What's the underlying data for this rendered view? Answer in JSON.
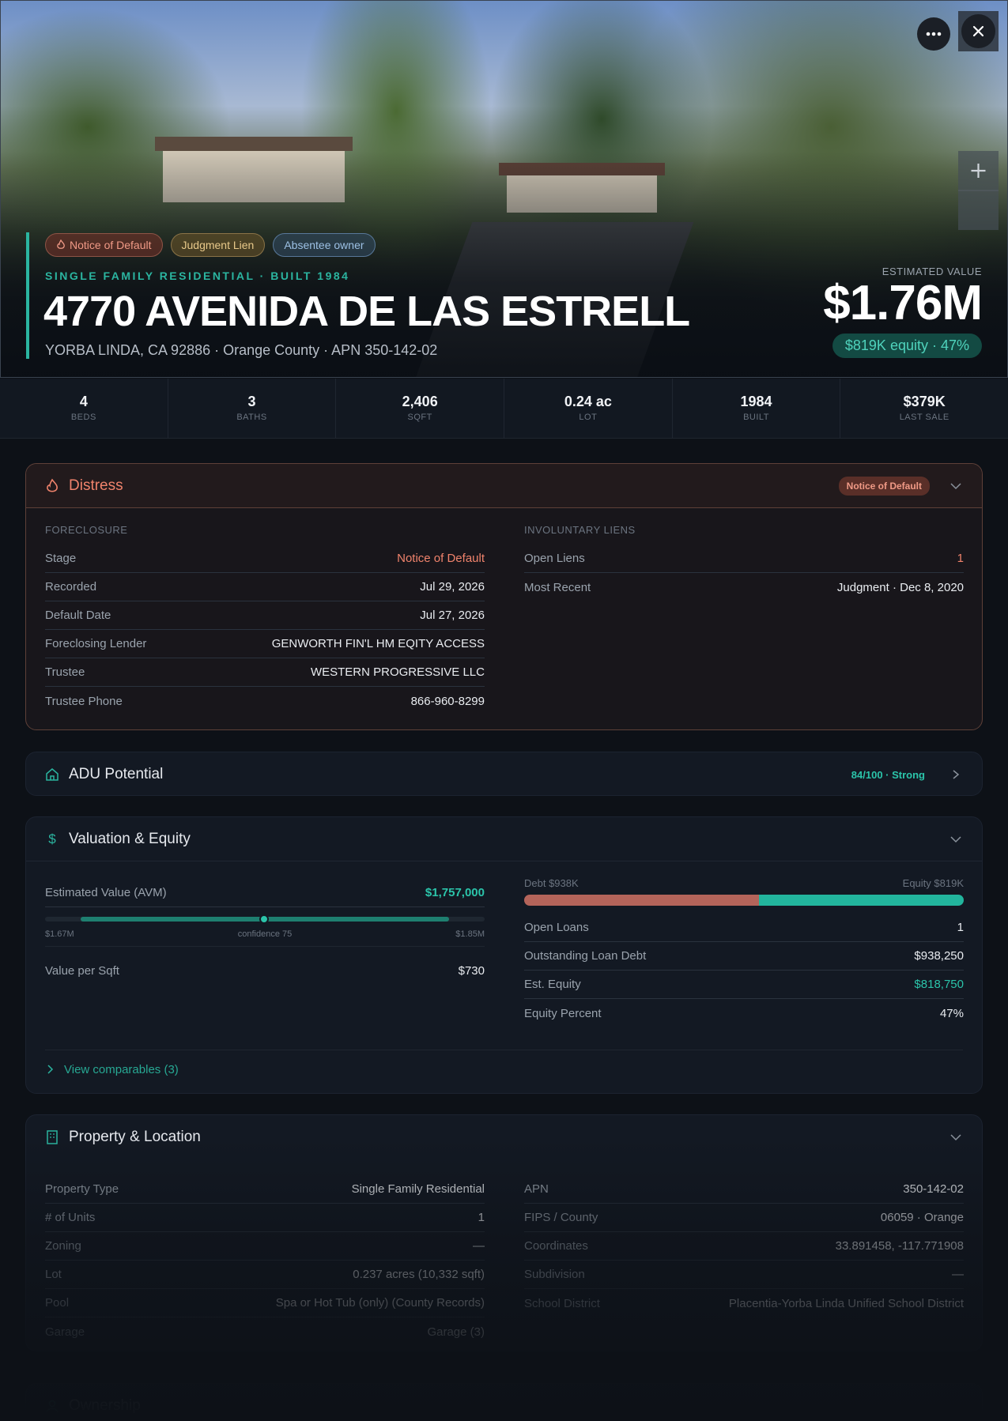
{
  "header": {
    "badges": [
      "Notice of Default",
      "Judgment Lien",
      "Absentee owner"
    ],
    "subtitle": "SINGLE FAMILY RESIDENTIAL · BUILT 1984",
    "title": "4770 AVENIDA DE LAS ESTRELL",
    "address": "YORBA LINDA, CA 92886 · Orange County · APN 350-142-02",
    "value_label": "ESTIMATED VALUE",
    "value": "$1.76M",
    "equity": "$819K equity · 47%"
  },
  "stats": [
    {
      "value": "4",
      "label": "BEDS"
    },
    {
      "value": "3",
      "label": "BATHS"
    },
    {
      "value": "2,406",
      "label": "SQFT"
    },
    {
      "value": "0.24 ac",
      "label": "LOT"
    },
    {
      "value": "1984",
      "label": "BUILT"
    },
    {
      "value": "$379K",
      "label": "LAST SALE"
    }
  ],
  "distress": {
    "title": "Distress",
    "badge": "Notice of Default",
    "foreclosure": {
      "heading": "FORECLOSURE",
      "rows": [
        [
          "Stage",
          "Notice of Default"
        ],
        [
          "Recorded",
          "Jul 29, 2026"
        ],
        [
          "Default Date",
          "Jul 27, 2026"
        ],
        [
          "Foreclosing Lender",
          "GENWORTH FIN'L HM EQITY ACCESS"
        ],
        [
          "Trustee",
          "WESTERN PROGRESSIVE LLC"
        ],
        [
          "Trustee Phone",
          "866-960-8299"
        ]
      ]
    },
    "liens": {
      "heading": "INVOLUNTARY LIENS",
      "rows": [
        [
          "Open Liens",
          "1"
        ],
        [
          "Most Recent",
          "Judgment · Dec 8, 2020"
        ]
      ]
    }
  },
  "adu": {
    "title": "ADU Potential",
    "score": "84/100 · Strong"
  },
  "valuation": {
    "title": "Valuation & Equity",
    "avm": {
      "label": "Estimated Value (AVM)",
      "value": "$1,757,000",
      "low": "$1.67M",
      "confidence": "confidence 75",
      "high": "$1.85M"
    },
    "per_sqft": [
      "Value per Sqft",
      "$730"
    ],
    "debt_label": "Debt $938K",
    "equity_label": "Equity $819K",
    "rows": [
      [
        "Open Loans",
        "1"
      ],
      [
        "Outstanding Loan Debt",
        "$938,250"
      ],
      [
        "Est. Equity",
        "$818,750"
      ],
      [
        "Equity Percent",
        "47%"
      ]
    ],
    "comparables": "View comparables (3)"
  },
  "property": {
    "title": "Property & Location",
    "left": [
      [
        "Property Type",
        "Single Family Residential"
      ],
      [
        "# of Units",
        "1"
      ],
      [
        "Zoning",
        "—"
      ],
      [
        "Lot",
        "0.237 acres (10,332 sqft)"
      ],
      [
        "Pool",
        "Spa or Hot Tub (only) (County Records)"
      ],
      [
        "Garage",
        "Garage (3)"
      ]
    ],
    "right": [
      [
        "APN",
        "350-142-02"
      ],
      [
        "FIPS / County",
        "06059 · Orange"
      ],
      [
        "Coordinates",
        "33.891458, -117.771908"
      ],
      [
        "Subdivision",
        "—"
      ],
      [
        "School District",
        "Placentia-Yorba Linda Unified School District"
      ]
    ]
  },
  "ownership": {
    "title": "Ownership"
  }
}
